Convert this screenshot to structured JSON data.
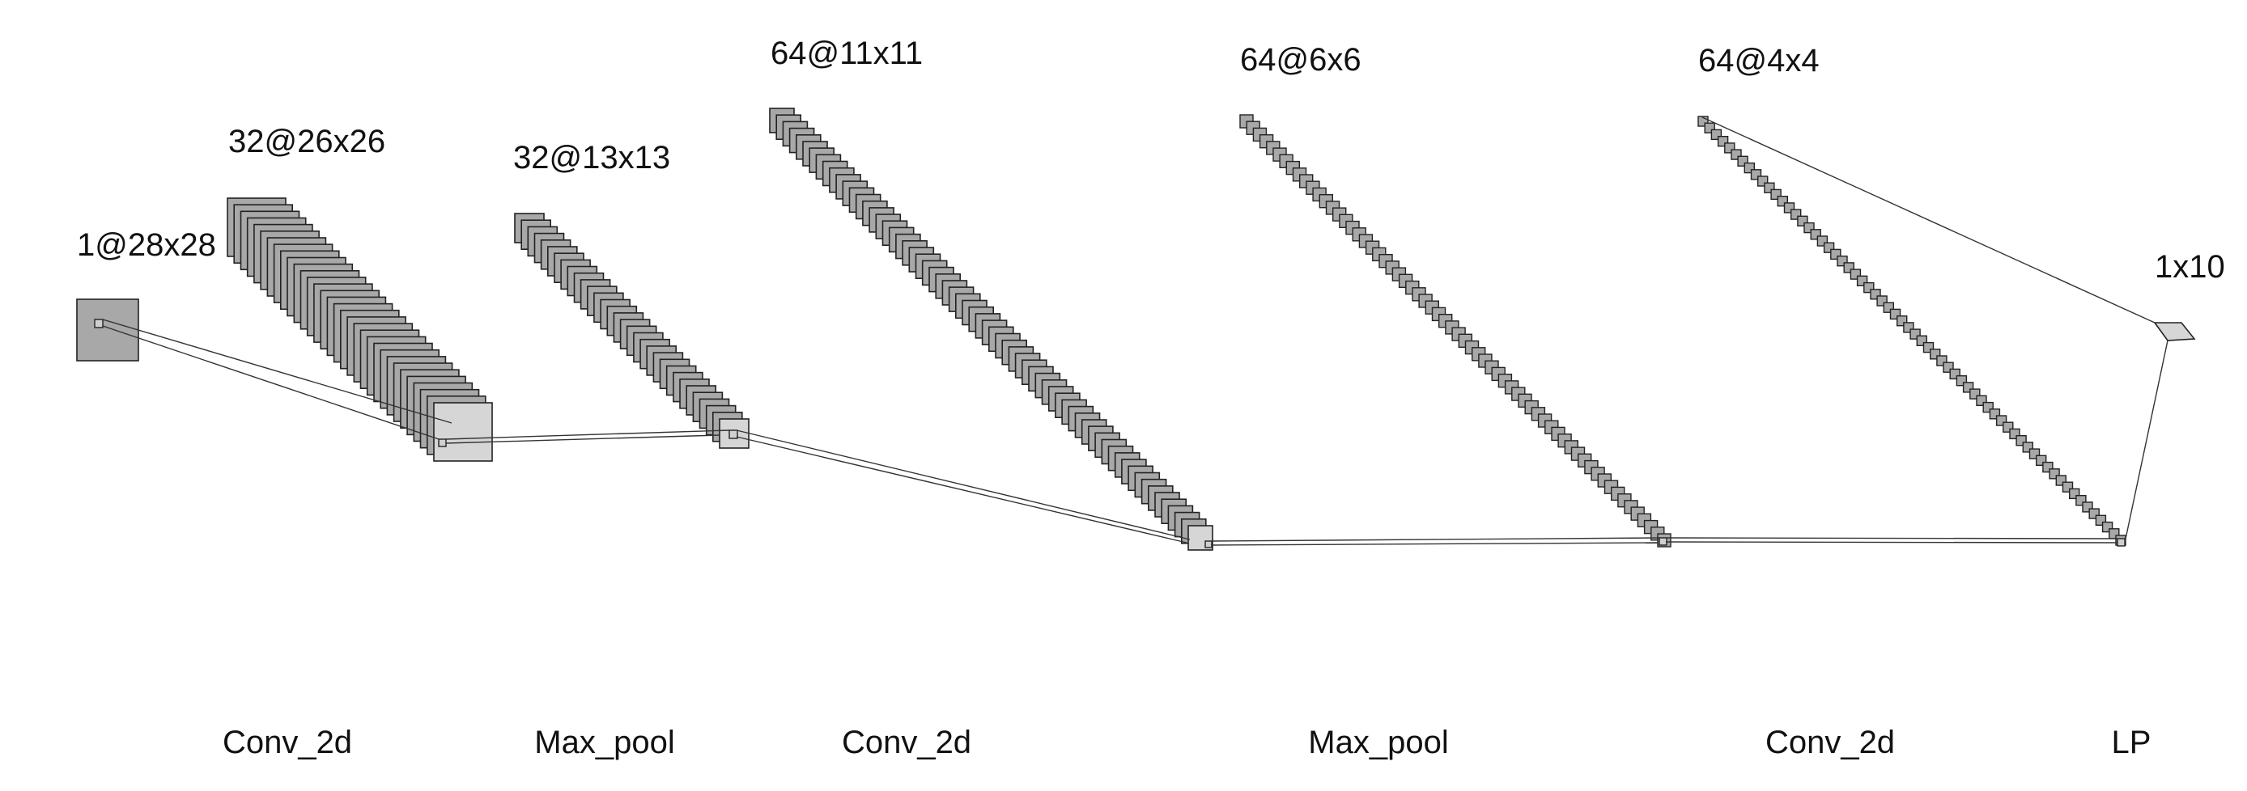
{
  "layers": [
    {
      "id": "input",
      "shape_label": "1@28x28",
      "channels": 1,
      "size": [
        28,
        28
      ]
    },
    {
      "id": "conv1",
      "shape_label": "32@26x26",
      "channels": 32,
      "size": [
        26,
        26
      ]
    },
    {
      "id": "pool1",
      "shape_label": "32@13x13",
      "channels": 32,
      "size": [
        13,
        13
      ]
    },
    {
      "id": "conv2",
      "shape_label": "64@11x11",
      "channels": 64,
      "size": [
        11,
        11
      ]
    },
    {
      "id": "pool2",
      "shape_label": "64@6x6",
      "channels": 64,
      "size": [
        6,
        6
      ]
    },
    {
      "id": "conv3",
      "shape_label": "64@4x4",
      "channels": 64,
      "size": [
        4,
        4
      ]
    },
    {
      "id": "output",
      "shape_label": "1x10",
      "channels": 1,
      "size": [
        1,
        10
      ]
    }
  ],
  "operations": [
    "Conv_2d",
    "Max_pool",
    "Conv_2d",
    "Max_pool",
    "Conv_2d",
    "LP"
  ],
  "colors": {
    "feature_map_fill": "#a8a8a8",
    "highlight_fill": "#d6d6d6",
    "stroke": "#222222"
  }
}
